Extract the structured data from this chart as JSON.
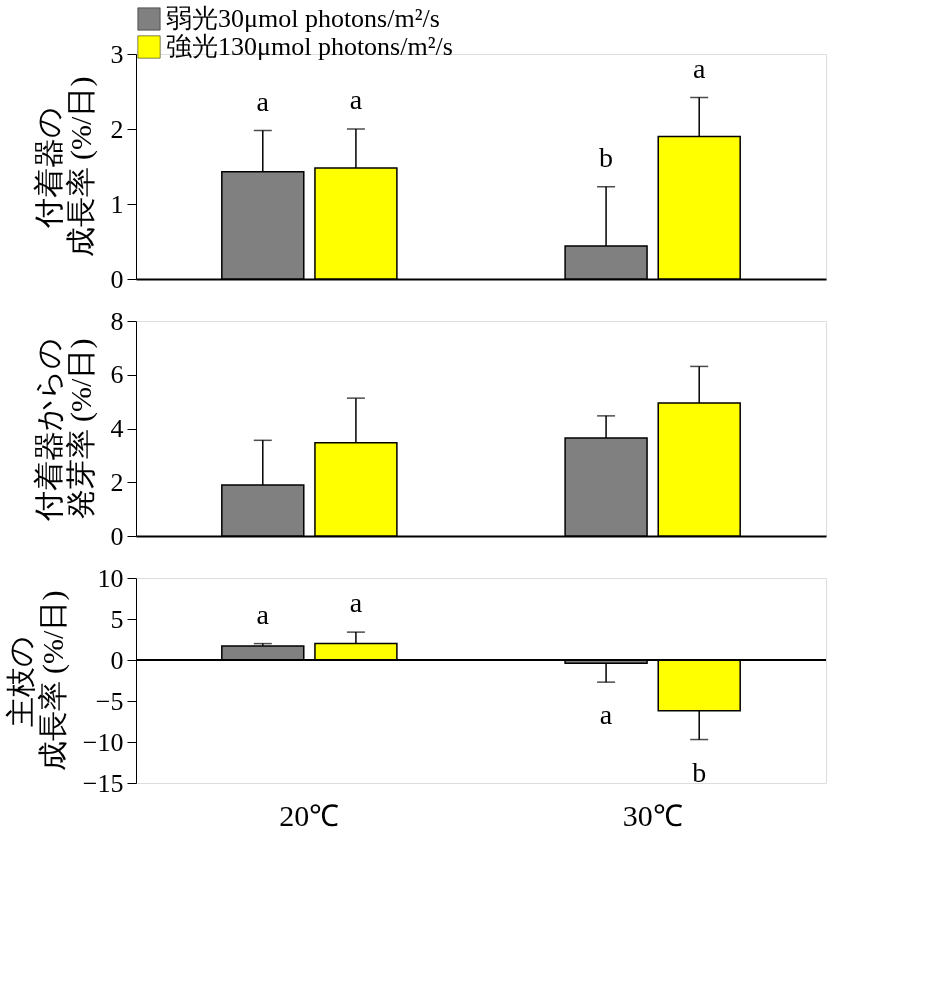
{
  "chart_data": [
    {
      "type": "bar",
      "ylabel": "付着器の成長率 (%/日)",
      "categories": [
        null,
        null
      ],
      "ylim": [
        0,
        3
      ],
      "yticks": [
        0,
        1,
        2,
        3
      ],
      "legend": "top",
      "series": [
        {
          "name": "弱光30μmol photons/m²/s",
          "color": "#808080",
          "values": [
            1.43,
            0.44
          ],
          "errors": [
            [
              1.43,
              1.98
            ],
            [
              0.44,
              1.23
            ]
          ]
        },
        {
          "name": "強光130μmol photons/m²/s",
          "color": "#ffff00",
          "values": [
            1.48,
            1.9
          ],
          "errors": [
            [
              1.48,
              2.0
            ],
            [
              1.9,
              2.42
            ]
          ]
        }
      ],
      "annotations": [
        "a",
        "a",
        "b",
        "a"
      ]
    },
    {
      "type": "bar",
      "ylabel": "付着器からの発芽率 (%/日)",
      "categories": [
        null,
        null
      ],
      "ylim": [
        0,
        8
      ],
      "yticks": [
        0,
        2,
        4,
        6,
        8
      ],
      "series": [
        {
          "color": "#808080",
          "values": [
            1.9,
            3.65
          ],
          "errors": [
            [
              1.9,
              3.56
            ],
            [
              3.65,
              4.47
            ]
          ]
        },
        {
          "color": "#ffff00",
          "values": [
            3.47,
            4.95
          ],
          "errors": [
            [
              3.47,
              5.13
            ],
            [
              4.95,
              6.31
            ]
          ]
        }
      ]
    },
    {
      "type": "bar",
      "ylabel": "主枝の成長率 (%/日)",
      "categories": [
        "20℃",
        "30℃"
      ],
      "ylim": [
        -15,
        10
      ],
      "yticks": [
        -15,
        -10,
        -5,
        0,
        5,
        10
      ],
      "series": [
        {
          "color": "#808080",
          "values": [
            1.7,
            -0.4
          ],
          "errors": [
            [
              1.7,
              2.0
            ],
            [
              -2.7,
              -0.4
            ]
          ]
        },
        {
          "color": "#ffff00",
          "values": [
            2.0,
            -6.2
          ],
          "errors": [
            [
              2.0,
              3.4
            ],
            [
              -9.7,
              -6.2
            ]
          ]
        }
      ],
      "ref_lines": [
        {
          "axis": "y",
          "value": 0
        }
      ],
      "annotations": [
        "a",
        "a",
        "a",
        "b"
      ]
    }
  ]
}
